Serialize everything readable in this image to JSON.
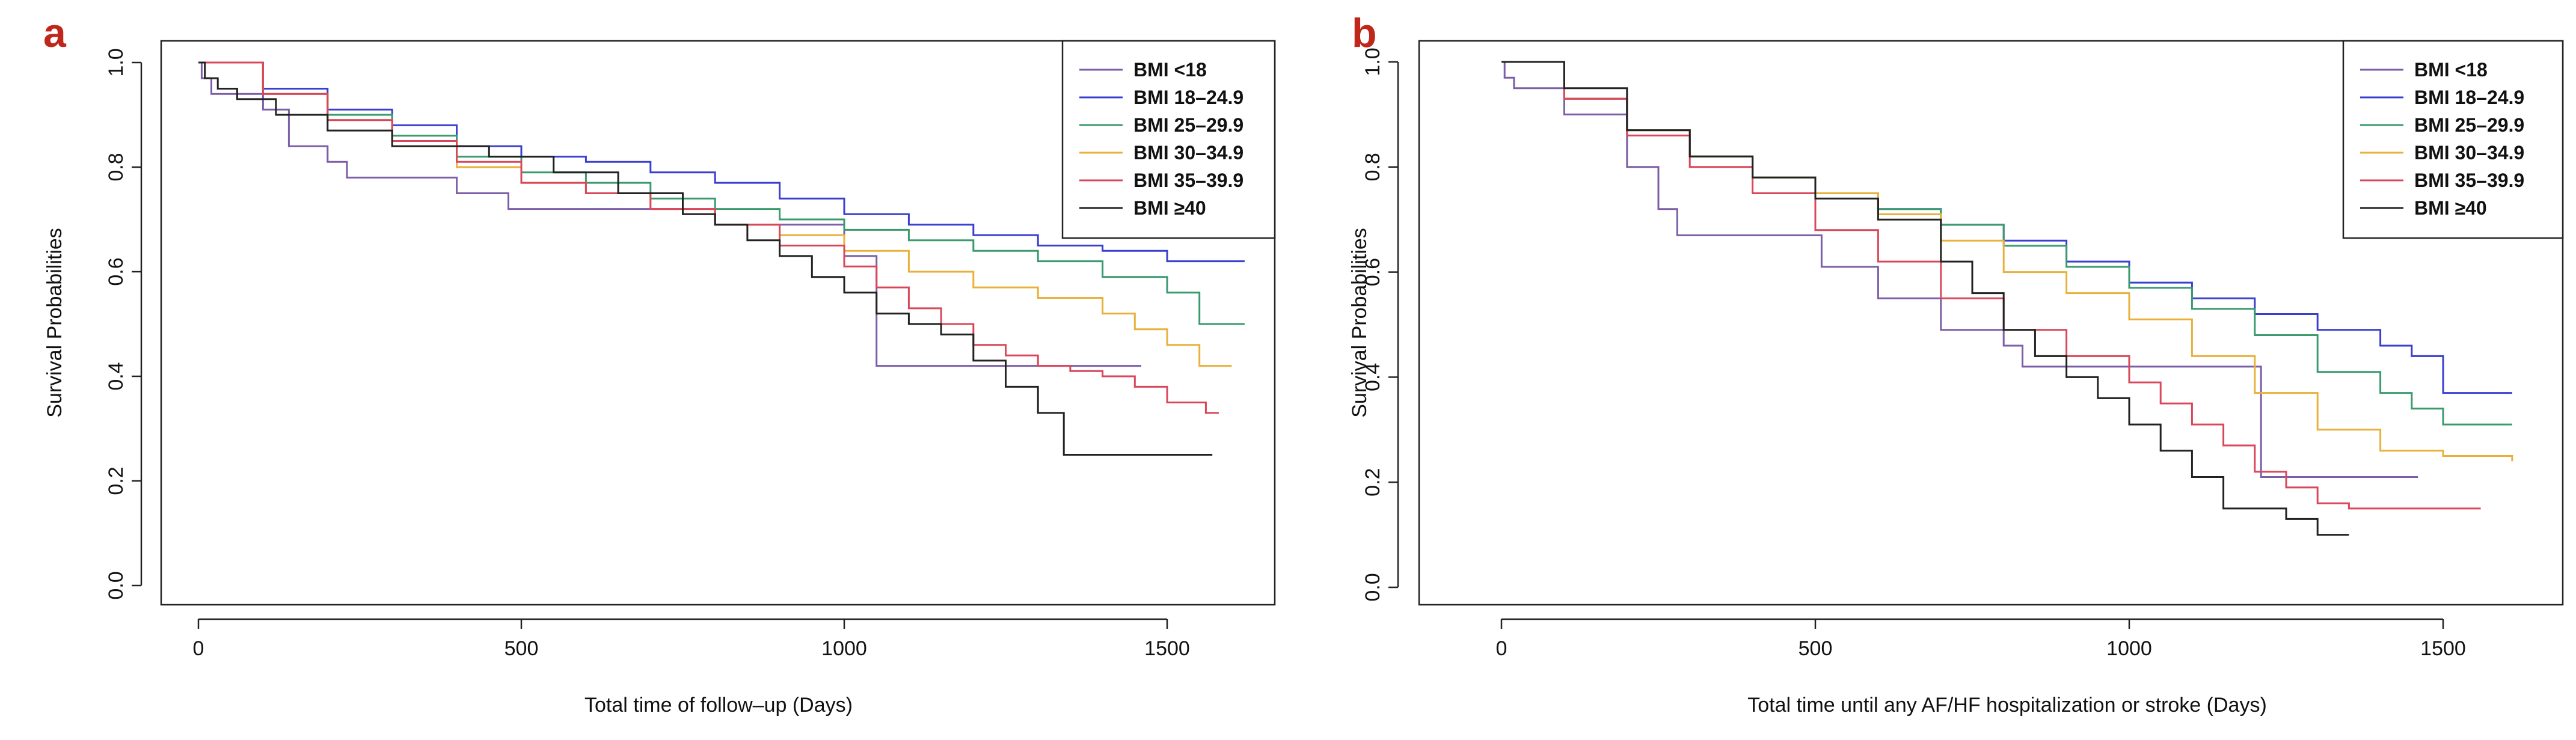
{
  "legend_labels": [
    "BMI <18",
    "BMI 18–24.9",
    "BMI 25–29.9",
    "BMI 30–34.9",
    "BMI 35–39.9",
    "BMI ≥40"
  ],
  "colors": [
    "#7b5ea7",
    "#3a3fd0",
    "#3a9a6e",
    "#e8b13a",
    "#d9475a",
    "#222222"
  ],
  "chart_data": [
    {
      "type": "line",
      "panel_label": "a",
      "title": "",
      "xlabel": "Total time of follow–up (Days)",
      "ylabel": "Survival Probabilities",
      "xlim": [
        0,
        1650
      ],
      "ylim": [
        0,
        1.0
      ],
      "xticks": [
        0,
        500,
        1000,
        1500
      ],
      "yticks": [
        0.0,
        0.2,
        0.4,
        0.6,
        0.8,
        1.0
      ],
      "xtick_labels": [
        "0",
        "500",
        "1000",
        "1500"
      ],
      "ytick_labels": [
        "0.0",
        "0.2",
        "0.4",
        "0.6",
        "0.8",
        "1.0"
      ],
      "legend_position": "top-right",
      "series": [
        {
          "name": "BMI <18",
          "x": [
            0,
            5,
            20,
            100,
            140,
            200,
            230,
            400,
            480,
            700,
            800,
            1000,
            1040,
            1050,
            1100,
            1460
          ],
          "y": [
            1.0,
            0.97,
            0.94,
            0.91,
            0.84,
            0.81,
            0.78,
            0.75,
            0.72,
            0.72,
            0.69,
            0.63,
            0.63,
            0.42,
            0.42,
            0.42
          ]
        },
        {
          "name": "BMI 18–24.9",
          "x": [
            0,
            100,
            200,
            300,
            400,
            500,
            600,
            700,
            800,
            900,
            1000,
            1100,
            1200,
            1300,
            1400,
            1500,
            1620
          ],
          "y": [
            1.0,
            0.95,
            0.91,
            0.88,
            0.84,
            0.82,
            0.81,
            0.79,
            0.77,
            0.74,
            0.71,
            0.69,
            0.67,
            0.65,
            0.64,
            0.62,
            0.62
          ]
        },
        {
          "name": "BMI 25–29.9",
          "x": [
            0,
            100,
            200,
            300,
            400,
            500,
            600,
            700,
            800,
            900,
            1000,
            1100,
            1200,
            1300,
            1400,
            1500,
            1550,
            1620
          ],
          "y": [
            1.0,
            0.94,
            0.9,
            0.86,
            0.82,
            0.79,
            0.77,
            0.74,
            0.72,
            0.7,
            0.68,
            0.66,
            0.64,
            0.62,
            0.59,
            0.56,
            0.5,
            0.5
          ]
        },
        {
          "name": "BMI 30–34.9",
          "x": [
            0,
            100,
            200,
            300,
            400,
            500,
            600,
            700,
            800,
            900,
            1000,
            1100,
            1200,
            1300,
            1400,
            1450,
            1500,
            1550,
            1600
          ],
          "y": [
            1.0,
            0.94,
            0.89,
            0.84,
            0.8,
            0.77,
            0.75,
            0.72,
            0.69,
            0.67,
            0.64,
            0.6,
            0.57,
            0.55,
            0.52,
            0.49,
            0.46,
            0.42,
            0.42
          ]
        },
        {
          "name": "BMI 35–39.9",
          "x": [
            0,
            100,
            200,
            300,
            400,
            500,
            600,
            700,
            800,
            900,
            1000,
            1050,
            1100,
            1150,
            1200,
            1250,
            1300,
            1350,
            1400,
            1450,
            1500,
            1560,
            1580
          ],
          "y": [
            1.0,
            0.94,
            0.89,
            0.85,
            0.81,
            0.77,
            0.75,
            0.72,
            0.69,
            0.65,
            0.61,
            0.57,
            0.53,
            0.5,
            0.46,
            0.44,
            0.42,
            0.41,
            0.4,
            0.38,
            0.35,
            0.33,
            0.33
          ]
        },
        {
          "name": "BMI ≥40",
          "x": [
            0,
            10,
            30,
            60,
            120,
            200,
            300,
            450,
            550,
            650,
            750,
            800,
            850,
            900,
            950,
            1000,
            1050,
            1100,
            1150,
            1200,
            1250,
            1300,
            1340,
            1570
          ],
          "y": [
            1.0,
            0.97,
            0.95,
            0.93,
            0.9,
            0.87,
            0.84,
            0.82,
            0.79,
            0.75,
            0.71,
            0.69,
            0.66,
            0.63,
            0.59,
            0.56,
            0.52,
            0.5,
            0.48,
            0.43,
            0.38,
            0.33,
            0.25,
            0.25
          ]
        }
      ]
    },
    {
      "type": "line",
      "panel_label": "b",
      "title": "",
      "xlabel": "Total time until any AF/HF hospitalization or stroke (Days)",
      "ylabel": "Survival Probabilities",
      "xlim": [
        0,
        1650
      ],
      "ylim": [
        0,
        1.0
      ],
      "xticks": [
        0,
        500,
        1000,
        1500
      ],
      "yticks": [
        0.0,
        0.2,
        0.4,
        0.6,
        0.8,
        1.0
      ],
      "xtick_labels": [
        "0",
        "500",
        "1000",
        "1500"
      ],
      "ytick_labels": [
        "0.0",
        "0.2",
        "0.4",
        "0.6",
        "0.8",
        "1.0"
      ],
      "legend_position": "top-right",
      "series": [
        {
          "name": "BMI <18",
          "x": [
            0,
            5,
            20,
            100,
            200,
            250,
            280,
            500,
            510,
            600,
            700,
            800,
            830,
            1000,
            1200,
            1210,
            1460
          ],
          "y": [
            1.0,
            0.97,
            0.95,
            0.9,
            0.8,
            0.72,
            0.67,
            0.67,
            0.61,
            0.55,
            0.49,
            0.46,
            0.42,
            0.42,
            0.42,
            0.21,
            0.21
          ]
        },
        {
          "name": "BMI 18–24.9",
          "x": [
            0,
            100,
            200,
            300,
            400,
            500,
            600,
            700,
            800,
            900,
            1000,
            1100,
            1200,
            1300,
            1400,
            1450,
            1500,
            1610
          ],
          "y": [
            1.0,
            0.93,
            0.87,
            0.82,
            0.78,
            0.75,
            0.72,
            0.69,
            0.66,
            0.62,
            0.58,
            0.55,
            0.52,
            0.49,
            0.46,
            0.44,
            0.37,
            0.37
          ]
        },
        {
          "name": "BMI 25–29.9",
          "x": [
            0,
            100,
            200,
            300,
            400,
            500,
            600,
            700,
            800,
            900,
            1000,
            1100,
            1200,
            1300,
            1400,
            1450,
            1500,
            1610
          ],
          "y": [
            1.0,
            0.93,
            0.87,
            0.82,
            0.78,
            0.75,
            0.72,
            0.69,
            0.65,
            0.61,
            0.57,
            0.53,
            0.48,
            0.41,
            0.37,
            0.34,
            0.31,
            0.31
          ]
        },
        {
          "name": "BMI 30–34.9",
          "x": [
            0,
            100,
            200,
            300,
            400,
            500,
            600,
            700,
            800,
            900,
            1000,
            1100,
            1200,
            1300,
            1400,
            1500,
            1610
          ],
          "y": [
            1.0,
            0.93,
            0.87,
            0.82,
            0.78,
            0.75,
            0.71,
            0.66,
            0.6,
            0.56,
            0.51,
            0.44,
            0.37,
            0.3,
            0.26,
            0.25,
            0.24
          ]
        },
        {
          "name": "BMI 35–39.9",
          "x": [
            0,
            100,
            200,
            300,
            400,
            500,
            600,
            700,
            800,
            900,
            1000,
            1050,
            1100,
            1150,
            1200,
            1250,
            1300,
            1350,
            1400,
            1560
          ],
          "y": [
            1.0,
            0.93,
            0.86,
            0.8,
            0.75,
            0.68,
            0.62,
            0.55,
            0.49,
            0.44,
            0.39,
            0.35,
            0.31,
            0.27,
            0.22,
            0.19,
            0.16,
            0.15,
            0.15,
            0.15
          ]
        },
        {
          "name": "BMI ≥40",
          "x": [
            0,
            100,
            200,
            300,
            400,
            500,
            600,
            700,
            750,
            800,
            850,
            900,
            950,
            1000,
            1050,
            1100,
            1150,
            1200,
            1250,
            1300,
            1350
          ],
          "y": [
            1.0,
            0.95,
            0.87,
            0.82,
            0.78,
            0.74,
            0.7,
            0.62,
            0.56,
            0.49,
            0.44,
            0.4,
            0.36,
            0.31,
            0.26,
            0.21,
            0.15,
            0.15,
            0.13,
            0.1,
            0.1
          ]
        }
      ]
    }
  ]
}
